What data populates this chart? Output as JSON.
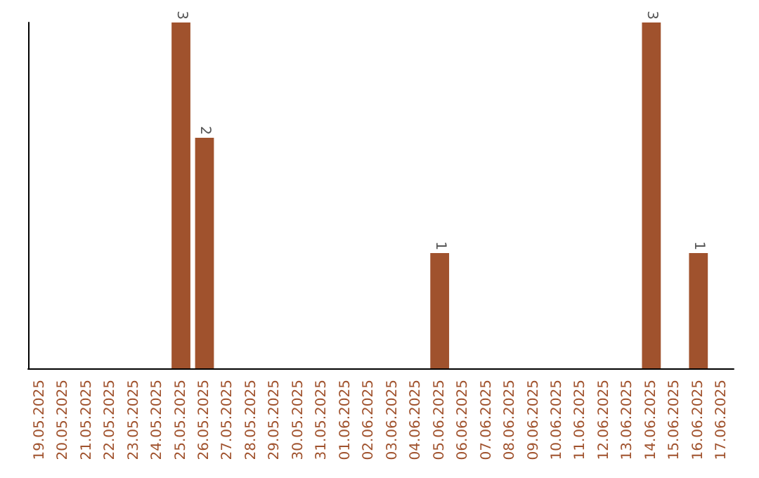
{
  "chart_data": {
    "type": "bar",
    "categories": [
      "19.05.2025",
      "20.05.2025",
      "21.05.2025",
      "22.05.2025",
      "23.05.2025",
      "24.05.2025",
      "25.05.2025",
      "26.05.2025",
      "27.05.2025",
      "28.05.2025",
      "29.05.2025",
      "30.05.2025",
      "31.05.2025",
      "01.06.2025",
      "02.06.2025",
      "03.06.2025",
      "04.06.2025",
      "05.06.2025",
      "06.06.2025",
      "07.06.2025",
      "08.06.2025",
      "09.06.2025",
      "10.06.2025",
      "11.06.2025",
      "12.06.2025",
      "13.06.2025",
      "14.06.2025",
      "15.06.2025",
      "16.06.2025",
      "17.06.2025"
    ],
    "values": [
      0,
      0,
      0,
      0,
      0,
      0,
      3,
      2,
      0,
      0,
      0,
      0,
      0,
      0,
      0,
      0,
      0,
      1,
      0,
      0,
      0,
      0,
      0,
      0,
      0,
      0,
      3,
      0,
      1,
      0
    ],
    "value_labels": [
      null,
      null,
      null,
      null,
      null,
      null,
      "3",
      "2",
      null,
      null,
      null,
      null,
      null,
      null,
      null,
      null,
      null,
      "1",
      null,
      null,
      null,
      null,
      null,
      null,
      null,
      null,
      "3",
      null,
      "1",
      null
    ],
    "color": "#a0522d",
    "grid": false,
    "tick_labels": "x"
  }
}
